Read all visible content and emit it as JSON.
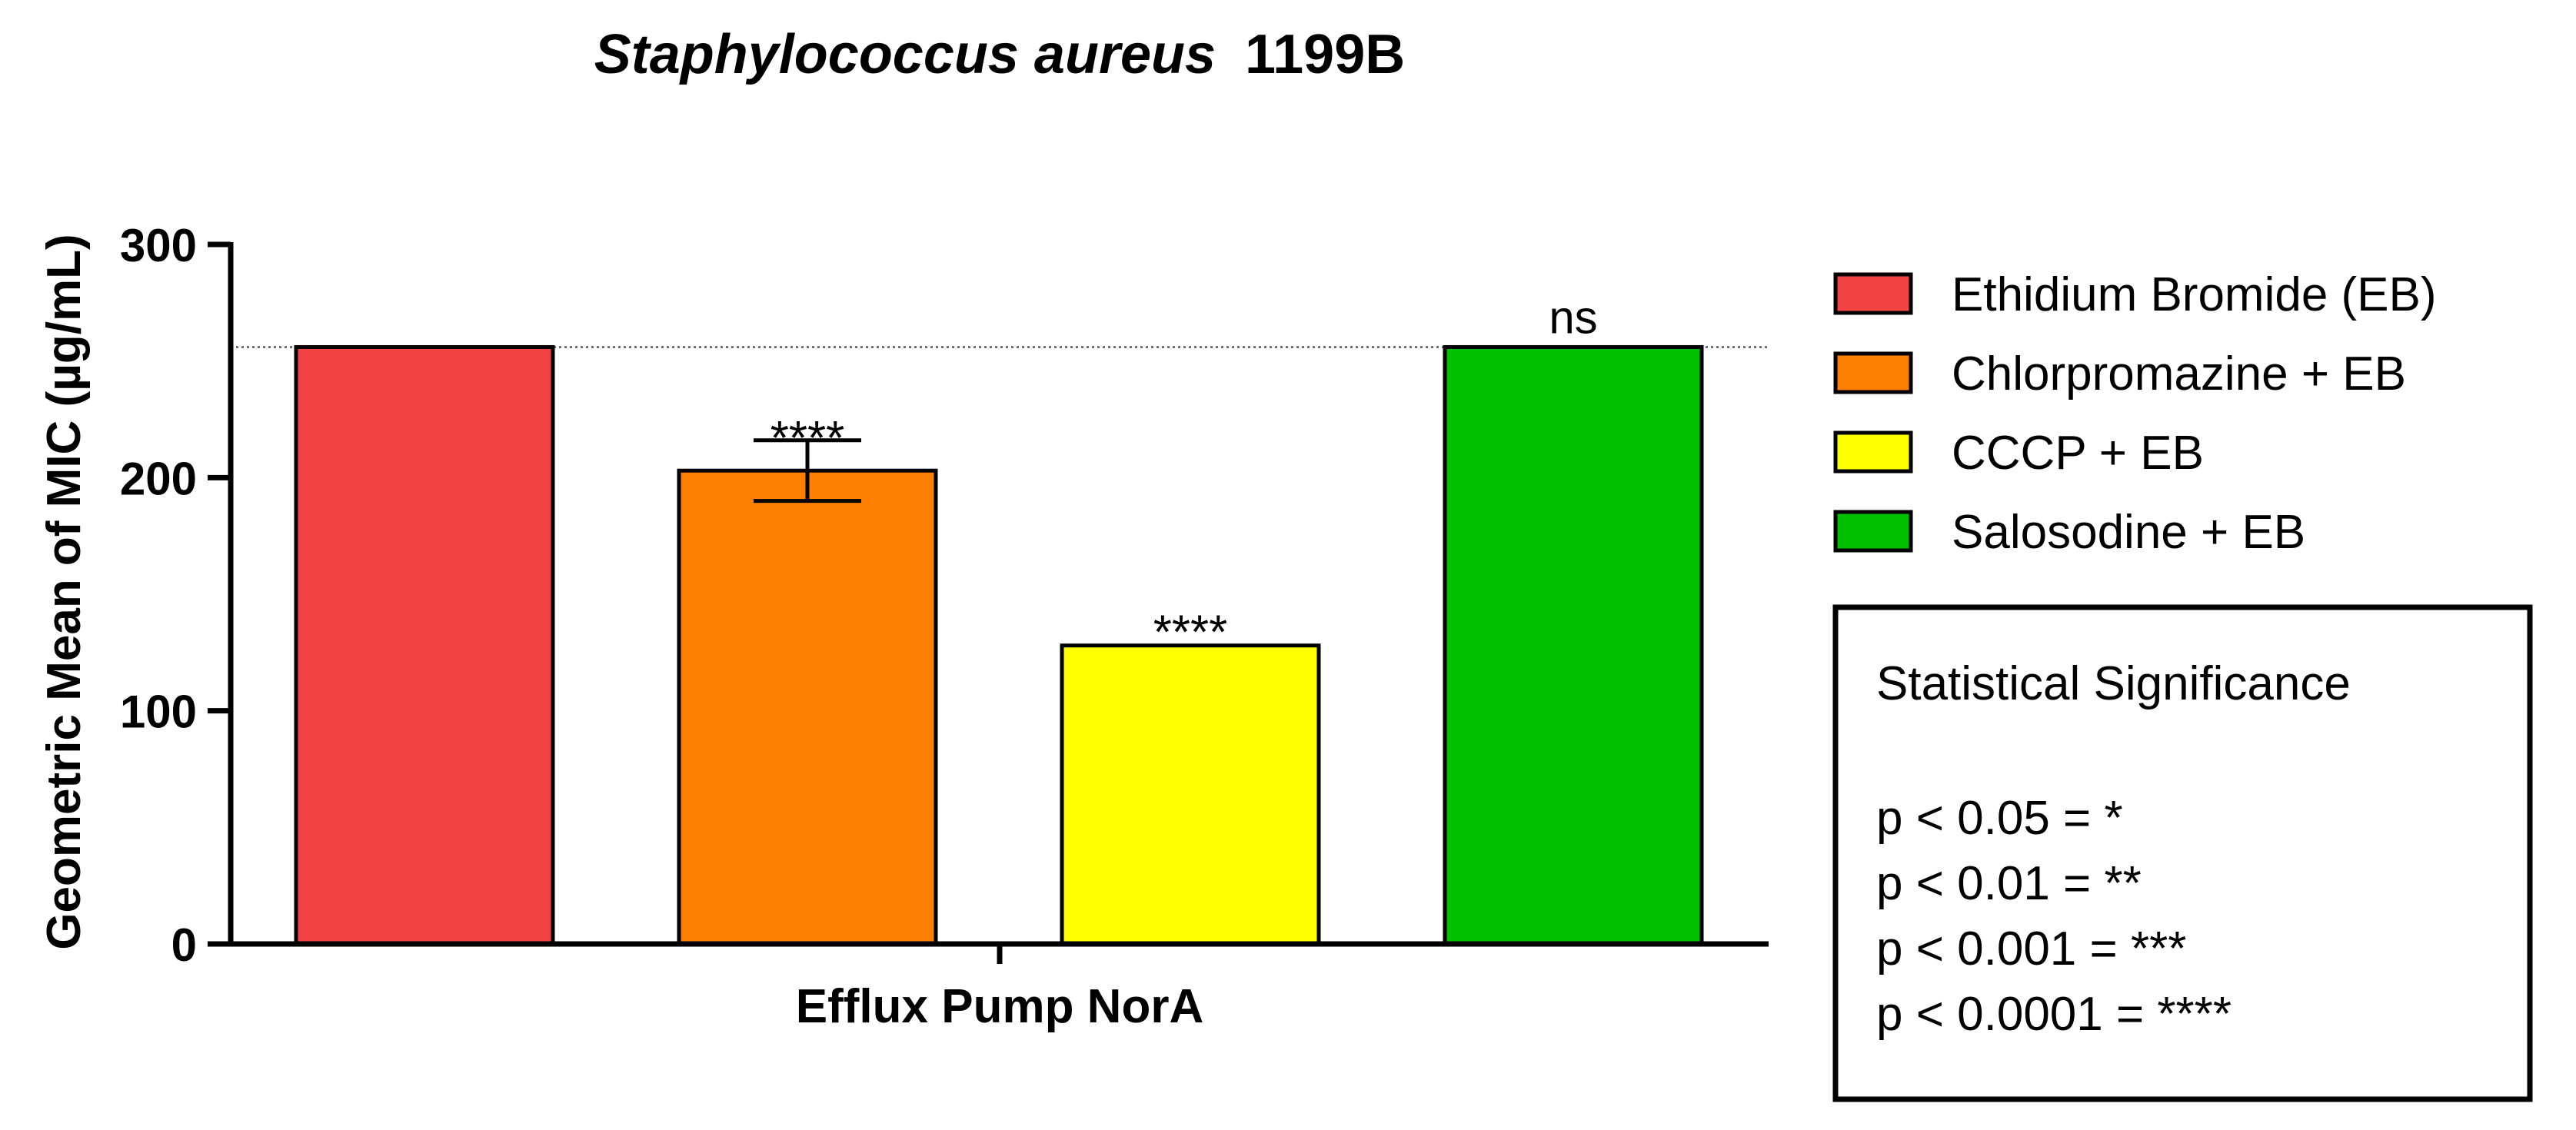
{
  "chart_data": {
    "type": "bar",
    "title_italic": "Staphylococcus aureus",
    "title_plain": "1199B",
    "xlabel": "Efflux Pump NorA",
    "ylabel": "Geometric Mean of MIC (µg/mL)",
    "ylim": [
      0,
      300
    ],
    "yticks": [
      0,
      100,
      200,
      300
    ],
    "ytick_labels": [
      "0",
      "100",
      "200",
      "300"
    ],
    "reference_line": 256,
    "series": [
      {
        "name": "Ethidium Bromide (EB)",
        "value": 256,
        "error": 0,
        "color": "#f44343",
        "annotation": ""
      },
      {
        "name": "Chlorpromazine + EB",
        "value": 203,
        "error": 13,
        "color": "#ff7f00",
        "annotation": "****"
      },
      {
        "name": "CCCP + EB",
        "value": 128,
        "error": 0,
        "color": "#ffff00",
        "annotation": "****"
      },
      {
        "name": "Salosodine + EB",
        "value": 256,
        "error": 0,
        "color": "#00c000",
        "annotation": "ns"
      }
    ],
    "legend_position": "right",
    "significance_box": {
      "title": "Statistical Significance",
      "lines": [
        "p < 0.05 = *",
        "p < 0.01 = **",
        "p < 0.001 = ***",
        "p < 0.0001 = ****"
      ]
    }
  }
}
